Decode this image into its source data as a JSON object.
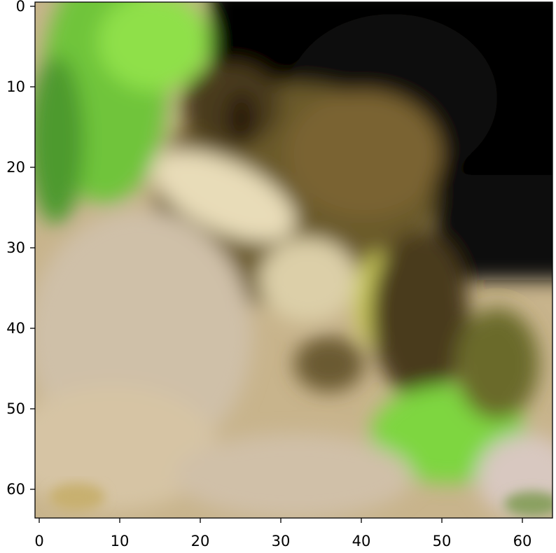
{
  "figure": {
    "x_ticks": [
      "0",
      "10",
      "20",
      "30",
      "40",
      "50",
      "60"
    ],
    "y_ticks": [
      "0",
      "10",
      "20",
      "30",
      "40",
      "50",
      "60"
    ],
    "palette": {
      "black": "#050505",
      "dark_olive": "#3a2f14",
      "olive": "#7a6a30",
      "bright_green": "#8fe04a",
      "yellow_green": "#c8c85a",
      "cream": "#e8dcb8",
      "pale_pink": "#d8c8c0",
      "beige": "#cbb58e"
    }
  }
}
